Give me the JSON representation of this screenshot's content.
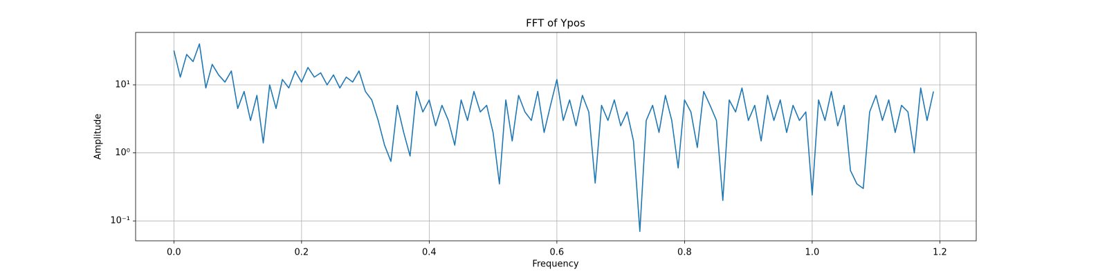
{
  "chart_data": {
    "type": "line",
    "title": "FFT of Ypos",
    "xlabel": "Frequency",
    "ylabel": "Amplitude",
    "log_y": true,
    "grid": true,
    "xlim": [
      -0.06,
      1.257
    ],
    "ylim": [
      0.051,
      59
    ],
    "xticks": [
      {
        "value": 0,
        "label": "0.0"
      },
      0.2,
      0.4,
      0.6,
      0.8,
      {
        "value": 1,
        "label": "1.0"
      },
      1.2
    ],
    "yticks": [
      {
        "value": 0.1,
        "label": "10⁻¹"
      },
      {
        "value": 1,
        "label": "10⁰"
      },
      {
        "value": 10,
        "label": "10¹"
      }
    ],
    "x": [
      0,
      0.01,
      0.02,
      0.03,
      0.04,
      0.05,
      0.06,
      0.07,
      0.08,
      0.09,
      0.1,
      0.11,
      0.12,
      0.13,
      0.14,
      0.15,
      0.16,
      0.17,
      0.18,
      0.19,
      0.2,
      0.21,
      0.22,
      0.23,
      0.24,
      0.25,
      0.26,
      0.27,
      0.28,
      0.29,
      0.3,
      0.31,
      0.32,
      0.33,
      0.34,
      0.35,
      0.36,
      0.37,
      0.38,
      0.39,
      0.4,
      0.41,
      0.42,
      0.43,
      0.44,
      0.45,
      0.46,
      0.47,
      0.48,
      0.49,
      0.5,
      0.51,
      0.52,
      0.53,
      0.54,
      0.55,
      0.56,
      0.57,
      0.58,
      0.59,
      0.6,
      0.61,
      0.62,
      0.63,
      0.64,
      0.65,
      0.66,
      0.67,
      0.68,
      0.69,
      0.7,
      0.71,
      0.72,
      0.73,
      0.74,
      0.75,
      0.76,
      0.77,
      0.78,
      0.79,
      0.8,
      0.81,
      0.82,
      0.83,
      0.84,
      0.85,
      0.86,
      0.87,
      0.88,
      0.89,
      0.9,
      0.91,
      0.92,
      0.93,
      0.94,
      0.95,
      0.96,
      0.97,
      0.98,
      0.99,
      1,
      1.01,
      1.02,
      1.03,
      1.04,
      1.05,
      1.06,
      1.07,
      1.08,
      1.09,
      1.1,
      1.11,
      1.12,
      1.13,
      1.14,
      1.15,
      1.16,
      1.17,
      1.18,
      1.19
    ],
    "series": [
      {
        "name": "Ypos",
        "color": "#1f77b4",
        "values": [
          32,
          13,
          28,
          22,
          40,
          9,
          20,
          14,
          11,
          16,
          4.5,
          8,
          3,
          7,
          1.4,
          10,
          4.5,
          12,
          9,
          16,
          11,
          18,
          13,
          15,
          10,
          14,
          9,
          13,
          11,
          16,
          8,
          6,
          3,
          1.3,
          0.75,
          5,
          2,
          0.9,
          8,
          4,
          6,
          2.5,
          5,
          3,
          1.3,
          6,
          3,
          8,
          4,
          5,
          2,
          0.35,
          6,
          1.5,
          7,
          4,
          3,
          8,
          2,
          5,
          12,
          3,
          6,
          2.5,
          7,
          4,
          0.36,
          5,
          3,
          6,
          2.5,
          4,
          1.5,
          0.07,
          3,
          5,
          2,
          7,
          3,
          0.6,
          6,
          4,
          1.2,
          8,
          5,
          3,
          0.2,
          6,
          4,
          9,
          3,
          5,
          1.5,
          7,
          3,
          6,
          2,
          5,
          3,
          4,
          0.24,
          6,
          3,
          8,
          2.5,
          5,
          0.55,
          0.35,
          0.3,
          4,
          7,
          3,
          6,
          2,
          5,
          4,
          1.0,
          9,
          3,
          8
        ]
      }
    ]
  }
}
